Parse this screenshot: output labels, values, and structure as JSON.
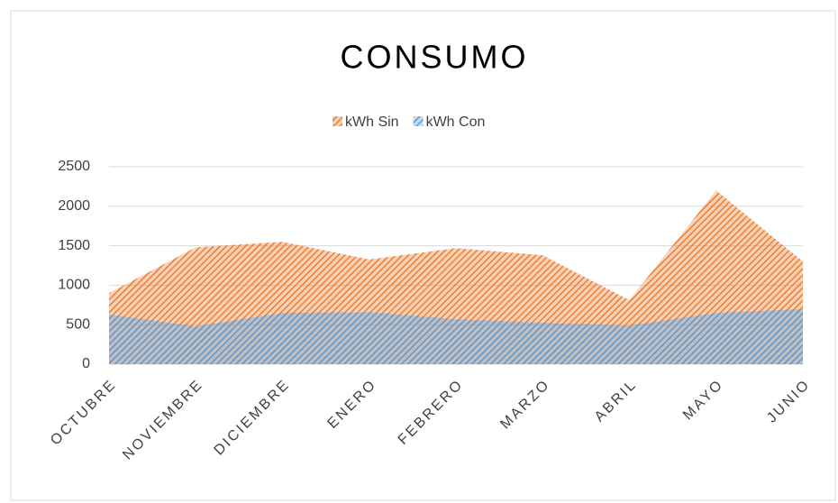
{
  "chart_data": {
    "type": "area",
    "title": "CONSUMO",
    "categories": [
      "OCTUBRE",
      "NOVIEMBRE",
      "DICIEMBRE",
      "ENERO",
      "FEBRERO",
      "MARZO",
      "ABRIL",
      "MAYO",
      "JUNIO"
    ],
    "series": [
      {
        "name": "kWh Sin",
        "color": "#ed7d31",
        "values": [
          900,
          1480,
          1550,
          1325,
          1470,
          1380,
          810,
          2200,
          1300
        ]
      },
      {
        "name": "kWh Con",
        "color": "#5b9bd5",
        "values": [
          630,
          480,
          650,
          660,
          570,
          525,
          490,
          650,
          700
        ]
      }
    ],
    "ylim": [
      0,
      2500
    ],
    "yticks": [
      0,
      500,
      1000,
      1500,
      2000,
      2500
    ],
    "grid": true,
    "legend": "top"
  }
}
